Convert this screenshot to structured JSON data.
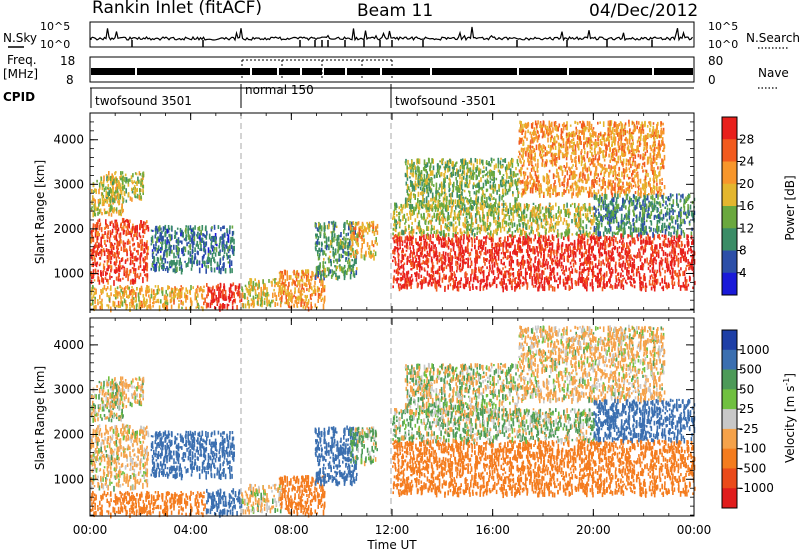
{
  "header": {
    "station": "Rankin Inlet (fitACF)",
    "beam": "Beam 11",
    "date": "04/Dec/2012"
  },
  "top_panels": {
    "nsky_label": "N.Sky",
    "nsky_ticks": [
      "10^5",
      "10^0"
    ],
    "nsearch_label": "N.Search",
    "freq_label_1": "Freq.",
    "freq_label_2": "[MHz]",
    "freq_ticks": [
      "18",
      "8"
    ],
    "nave_ticks": [
      "80",
      "0"
    ],
    "nave_label": "Nave",
    "cpid_label": "CPID",
    "cpid_segments": [
      {
        "label": "twofsound 3501",
        "start_h": 0,
        "end_h": 6
      },
      {
        "label": "normal 150",
        "start_h": 6,
        "end_h": 12
      },
      {
        "label": "twofsound -3501",
        "start_h": 12,
        "end_h": 24
      }
    ]
  },
  "panels": {
    "power": {
      "ylabel": "Slant Range [km]",
      "cbar_label": "Power [dB]",
      "cbar_ticks": [
        "28",
        "24",
        "20",
        "16",
        "12",
        "8",
        "4"
      ],
      "colors": [
        "#e8201c",
        "#f25a1e",
        "#f7962b",
        "#e4b62e",
        "#6aa83e",
        "#3a8c66",
        "#2c4fa8",
        "#1a1ad8"
      ]
    },
    "velocity": {
      "ylabel": "Slant Range [km]",
      "cbar_label": "Velocity [m s",
      "cbar_label_sup": "-1",
      "cbar_label_end": "]",
      "cbar_ticks": [
        "1000",
        "500",
        "50",
        "25",
        "-25",
        "-100",
        "-500",
        "-1000"
      ],
      "colors": [
        "#1e3fa6",
        "#3b6fb0",
        "#4d9a58",
        "#70c040",
        "#c8c8c8",
        "#f5a24a",
        "#f47c1e",
        "#ea4a1a",
        "#e01c1c"
      ]
    }
  },
  "x_axis": {
    "label": "Time UT",
    "ticks": [
      "00:00",
      "04:00",
      "08:00",
      "12:00",
      "16:00",
      "20:00",
      "00:00"
    ]
  },
  "chart_data": {
    "type": "heatmap",
    "title": "Rankin Inlet (fitACF) Beam 11 04/Dec/2012",
    "xlabel": "Time UT",
    "ylabel": "Slant Range [km]",
    "xlim_hours": [
      0,
      24
    ],
    "ylim_km": [
      180,
      4600
    ],
    "grid": false,
    "mode_change_hours": [
      6,
      12
    ],
    "series": [
      {
        "name": "Power [dB]",
        "colorbar_range": [
          0,
          30
        ]
      },
      {
        "name": "Velocity [m s-1]",
        "colorbar_range": [
          -1000,
          1000
        ]
      }
    ],
    "regions": [
      {
        "t0": 0.0,
        "t1": 2.3,
        "r0": 850,
        "r1": 2250,
        "power": 26,
        "velocity": -100
      },
      {
        "t0": 0.0,
        "t1": 1.3,
        "r0": 2350,
        "r1": 3200,
        "power": 16,
        "velocity": -25
      },
      {
        "t0": 0.6,
        "t1": 2.1,
        "r0": 2650,
        "r1": 3300,
        "power": 14,
        "velocity": -100
      },
      {
        "t0": 0.0,
        "t1": 4.6,
        "r0": 250,
        "r1": 750,
        "power": 18,
        "velocity": -500
      },
      {
        "t0": 2.4,
        "t1": 5.7,
        "r0": 1100,
        "r1": 2100,
        "power": 6,
        "velocity": 500
      },
      {
        "t0": 4.6,
        "t1": 6.0,
        "r0": 250,
        "r1": 800,
        "power": 28,
        "velocity": 500
      },
      {
        "t0": 6.0,
        "t1": 7.6,
        "r0": 300,
        "r1": 900,
        "power": 16,
        "velocity": -100
      },
      {
        "t0": 7.5,
        "t1": 9.3,
        "r0": 250,
        "r1": 1100,
        "power": 20,
        "velocity": -500
      },
      {
        "t0": 8.9,
        "t1": 10.6,
        "r0": 950,
        "r1": 2200,
        "power": 10,
        "velocity": 500
      },
      {
        "t0": 10.3,
        "t1": 11.4,
        "r0": 1400,
        "r1": 2200,
        "power": 18,
        "velocity": 50
      },
      {
        "t0": 12.0,
        "t1": 24.0,
        "r0": 700,
        "r1": 1900,
        "power": 28,
        "velocity": -500
      },
      {
        "t0": 12.0,
        "t1": 20.0,
        "r0": 1900,
        "r1": 2600,
        "power": 14,
        "velocity": 25
      },
      {
        "t0": 12.5,
        "t1": 17.0,
        "r0": 2500,
        "r1": 3600,
        "power": 12,
        "velocity": -25
      },
      {
        "t0": 17.0,
        "t1": 22.8,
        "r0": 2800,
        "r1": 4450,
        "power": 20,
        "velocity": -100
      },
      {
        "t0": 20.0,
        "t1": 24.0,
        "r0": 1900,
        "r1": 2800,
        "power": 8,
        "velocity": 500
      }
    ]
  }
}
